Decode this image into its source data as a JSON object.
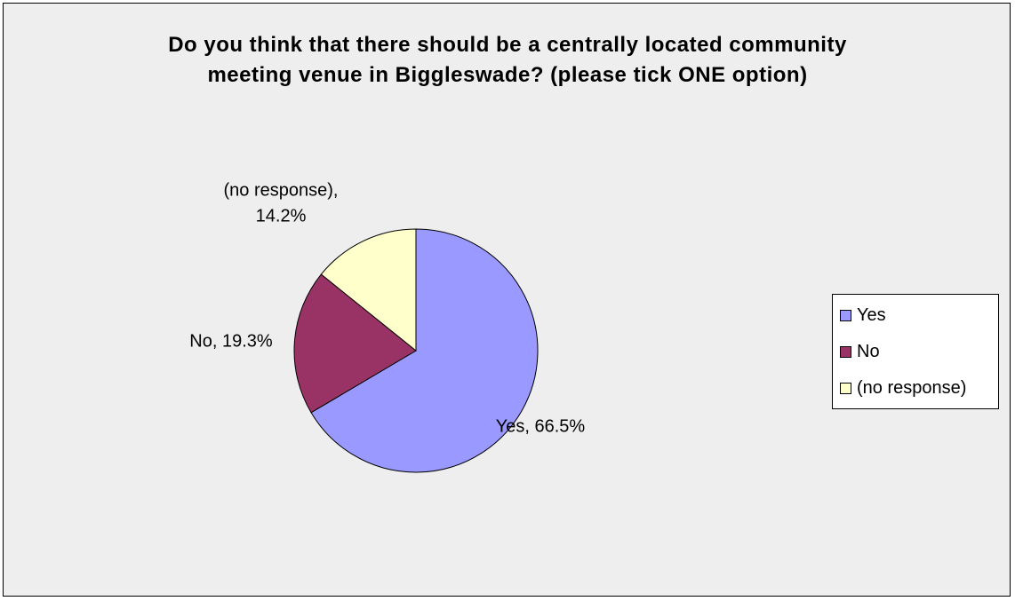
{
  "chart_data": {
    "type": "pie",
    "title_lines": [
      "Do you think that there should be a centrally located community",
      "meeting venue in Biggleswade? (please tick ONE option)"
    ],
    "slices": [
      {
        "name": "Yes",
        "value": 66.5,
        "label": "Yes, 66.5%",
        "color": "#9999ff"
      },
      {
        "name": "No",
        "value": 19.3,
        "label": "No, 19.3%",
        "color": "#993366"
      },
      {
        "name": "(no response)",
        "value": 14.2,
        "label_lines": [
          "(no response),",
          "14.2%"
        ],
        "color": "#ffffcc"
      }
    ],
    "legend": {
      "placement": "right",
      "entries": [
        "Yes",
        "No",
        "(no response)"
      ]
    },
    "start_angle": "12 o'clock",
    "direction": "clockwise"
  }
}
